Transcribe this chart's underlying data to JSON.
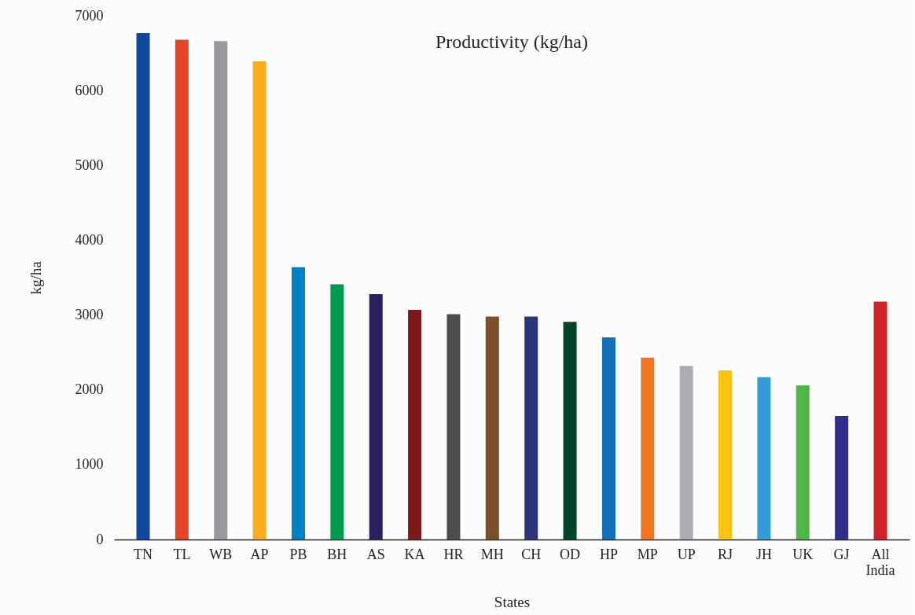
{
  "chart_data": {
    "type": "bar",
    "title": "Productivity (kg/ha)",
    "xlabel": "States",
    "ylabel": "kg/ha",
    "categories": [
      "TN",
      "TL",
      "WB",
      "AP",
      "PB",
      "BH",
      "AS",
      "KA",
      "HR",
      "MH",
      "CH",
      "OD",
      "HP",
      "MP",
      "UP",
      "RJ",
      "JH",
      "UK",
      "GJ",
      "All India"
    ],
    "values": [
      6770,
      6680,
      6660,
      6390,
      3640,
      3410,
      3280,
      3070,
      3010,
      2980,
      2980,
      2910,
      2700,
      2430,
      2320,
      2260,
      2170,
      2060,
      1650,
      3180
    ],
    "colors": [
      "#1048a0",
      "#e84524",
      "#98999e",
      "#f8ae1c",
      "#0081c6",
      "#009b4c",
      "#29225e",
      "#80171b",
      "#4d4d4f",
      "#7a4f29",
      "#2d347a",
      "#034527",
      "#1270bb",
      "#f27524",
      "#acadb0",
      "#fbc413",
      "#359bd6",
      "#4fb647",
      "#302f8e",
      "#cd2329"
    ],
    "ylim": [
      0,
      7000
    ],
    "yticks": [
      0,
      1000,
      2000,
      3000,
      4000,
      5000,
      6000,
      7000
    ],
    "grid": false,
    "legend": false
  }
}
